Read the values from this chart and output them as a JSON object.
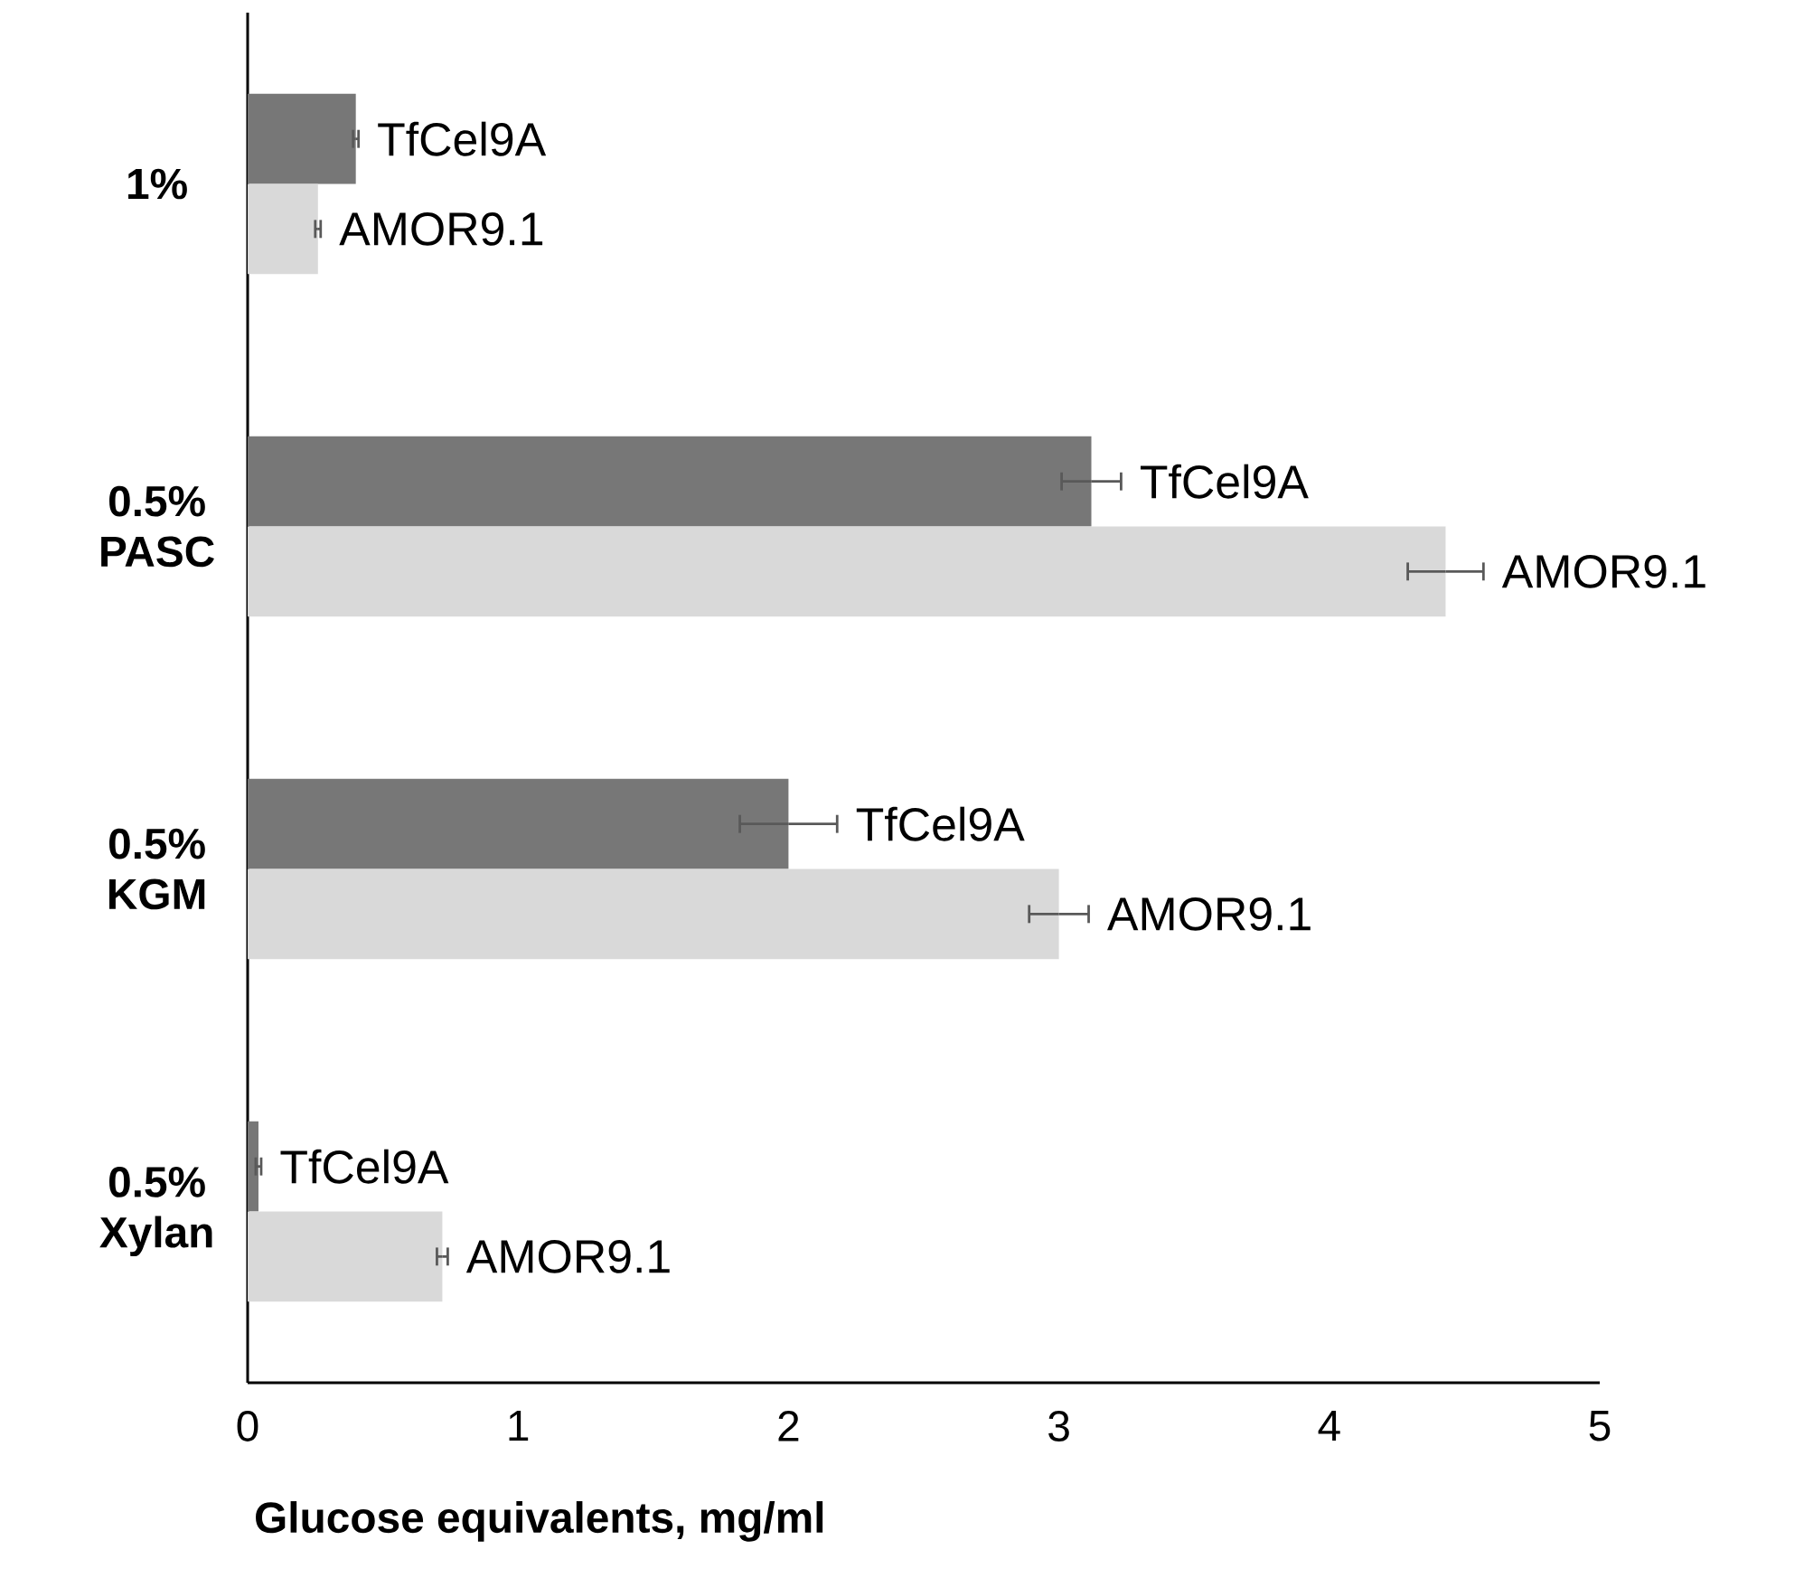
{
  "chart_data": {
    "type": "bar",
    "orientation": "horizontal",
    "xlabel": "Glucose equivalents, mg/ml",
    "categories": [
      "1%",
      "0.5% PASC",
      "0.5% KGM",
      "0.5% Xylan"
    ],
    "series": [
      {
        "name": "TfCel9A",
        "color": "#777777",
        "values": [
          0.4,
          3.12,
          2.0,
          0.04
        ],
        "errors": [
          0.01,
          0.11,
          0.18,
          0.01
        ]
      },
      {
        "name": "AMOR9.1",
        "color": "#d9d9d9",
        "values": [
          0.26,
          4.43,
          3.0,
          0.72
        ],
        "errors": [
          0.01,
          0.14,
          0.11,
          0.02
        ]
      }
    ],
    "xlim": [
      0,
      5
    ],
    "xticks": [
      0,
      1,
      2,
      3,
      4,
      5
    ]
  }
}
